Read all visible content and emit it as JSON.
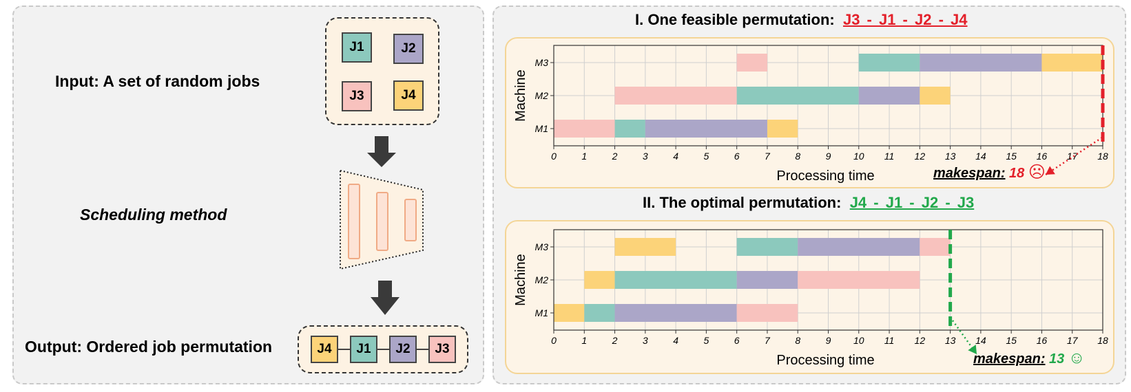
{
  "colors": {
    "J1": "#8cc9bd",
    "J2": "#aba6c8",
    "J3": "#f8c2be",
    "J4": "#fcd379",
    "bad": "#e3202a",
    "good": "#21a84b"
  },
  "left": {
    "input_label": "Input: A set of random jobs",
    "method_label": "Scheduling method",
    "output_label": "Output: Ordered job permutation",
    "input_jobs": [
      "J1",
      "J2",
      "J3",
      "J4"
    ],
    "output_jobs": [
      "J4",
      "J1",
      "J2",
      "J3"
    ]
  },
  "chart_data": [
    {
      "type": "gantt",
      "title_prefix": "I. One feasible permutation:",
      "permutation": "J3  -  J1  -  J2  - J4",
      "xlabel": "Processing time",
      "ylabel": "Machine",
      "xlim": [
        0,
        18
      ],
      "x_ticks": [
        "0",
        "1",
        "2",
        "3",
        "4",
        "5",
        "6",
        "7",
        "8",
        "9",
        "10",
        "11",
        "12",
        "13",
        "14",
        "15",
        "16",
        "17",
        "18"
      ],
      "machines": [
        "M1",
        "M2",
        "M3"
      ],
      "grid": true,
      "bars": [
        {
          "machine": "M1",
          "job": "J3",
          "start": 0,
          "end": 2
        },
        {
          "machine": "M1",
          "job": "J1",
          "start": 2,
          "end": 3
        },
        {
          "machine": "M1",
          "job": "J2",
          "start": 3,
          "end": 7
        },
        {
          "machine": "M1",
          "job": "J4",
          "start": 7,
          "end": 8
        },
        {
          "machine": "M2",
          "job": "J3",
          "start": 2,
          "end": 6
        },
        {
          "machine": "M2",
          "job": "J1",
          "start": 6,
          "end": 10
        },
        {
          "machine": "M2",
          "job": "J2",
          "start": 10,
          "end": 12
        },
        {
          "machine": "M2",
          "job": "J4",
          "start": 12,
          "end": 13
        },
        {
          "machine": "M3",
          "job": "J3",
          "start": 6,
          "end": 7
        },
        {
          "machine": "M3",
          "job": "J1",
          "start": 10,
          "end": 12
        },
        {
          "machine": "M3",
          "job": "J2",
          "start": 12,
          "end": 16
        },
        {
          "machine": "M3",
          "job": "J4",
          "start": 16,
          "end": 18
        }
      ],
      "makespan": 18,
      "makespan_label": "makespan:",
      "makespan_value": "18",
      "face": "☹"
    },
    {
      "type": "gantt",
      "title_prefix": "II. The optimal permutation:",
      "permutation": "J4  -  J1  -  J2  - J3",
      "xlabel": "Processing time",
      "ylabel": "Machine",
      "xlim": [
        0,
        18
      ],
      "x_ticks": [
        "0",
        "1",
        "2",
        "3",
        "4",
        "5",
        "6",
        "7",
        "8",
        "9",
        "10",
        "11",
        "12",
        "13",
        "14",
        "15",
        "16",
        "17",
        "18"
      ],
      "machines": [
        "M1",
        "M2",
        "M3"
      ],
      "grid": true,
      "bars": [
        {
          "machine": "M1",
          "job": "J4",
          "start": 0,
          "end": 1
        },
        {
          "machine": "M1",
          "job": "J1",
          "start": 1,
          "end": 2
        },
        {
          "machine": "M1",
          "job": "J2",
          "start": 2,
          "end": 6
        },
        {
          "machine": "M1",
          "job": "J3",
          "start": 6,
          "end": 8
        },
        {
          "machine": "M2",
          "job": "J4",
          "start": 1,
          "end": 2
        },
        {
          "machine": "M2",
          "job": "J1",
          "start": 2,
          "end": 6
        },
        {
          "machine": "M2",
          "job": "J2",
          "start": 6,
          "end": 8
        },
        {
          "machine": "M2",
          "job": "J3",
          "start": 8,
          "end": 12
        },
        {
          "machine": "M3",
          "job": "J4",
          "start": 2,
          "end": 4
        },
        {
          "machine": "M3",
          "job": "J1",
          "start": 6,
          "end": 8
        },
        {
          "machine": "M3",
          "job": "J2",
          "start": 8,
          "end": 12
        },
        {
          "machine": "M3",
          "job": "J3",
          "start": 12,
          "end": 13
        }
      ],
      "makespan": 13,
      "makespan_label": "makespan:",
      "makespan_value": "13",
      "face": "☺"
    }
  ]
}
